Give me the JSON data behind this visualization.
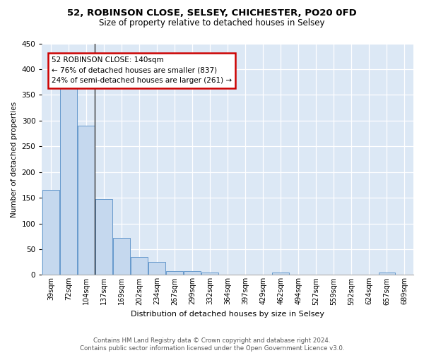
{
  "title1": "52, ROBINSON CLOSE, SELSEY, CHICHESTER, PO20 0FD",
  "title2": "Size of property relative to detached houses in Selsey",
  "xlabel": "Distribution of detached houses by size in Selsey",
  "ylabel": "Number of detached properties",
  "categories": [
    "39sqm",
    "72sqm",
    "104sqm",
    "137sqm",
    "169sqm",
    "202sqm",
    "234sqm",
    "267sqm",
    "299sqm",
    "332sqm",
    "364sqm",
    "397sqm",
    "429sqm",
    "462sqm",
    "494sqm",
    "527sqm",
    "559sqm",
    "592sqm",
    "624sqm",
    "657sqm",
    "689sqm"
  ],
  "values": [
    165,
    370,
    290,
    148,
    72,
    35,
    25,
    8,
    7,
    5,
    0,
    0,
    0,
    5,
    0,
    0,
    0,
    0,
    0,
    5,
    0
  ],
  "bar_color": "#c5d8ee",
  "bar_edge_color": "#6699cc",
  "annotation_line": "52 ROBINSON CLOSE: 140sqm",
  "annotation_line2": "← 76% of detached houses are smaller (837)",
  "annotation_line3": "24% of semi-detached houses are larger (261) →",
  "annotation_box_color": "white",
  "annotation_box_edge_color": "#cc0000",
  "property_line_color": "#333333",
  "ylim": [
    0,
    450
  ],
  "yticks": [
    0,
    50,
    100,
    150,
    200,
    250,
    300,
    350,
    400,
    450
  ],
  "bg_color": "#dce8f5",
  "footer1": "Contains HM Land Registry data © Crown copyright and database right 2024.",
  "footer2": "Contains public sector information licensed under the Open Government Licence v3.0.",
  "title1_fontsize": 9.5,
  "title2_fontsize": 8.5,
  "xlabel_fontsize": 8.0,
  "ylabel_fontsize": 7.5,
  "tick_fontsize": 7.0,
  "annot_fontsize": 7.5,
  "footer_fontsize": 6.2
}
